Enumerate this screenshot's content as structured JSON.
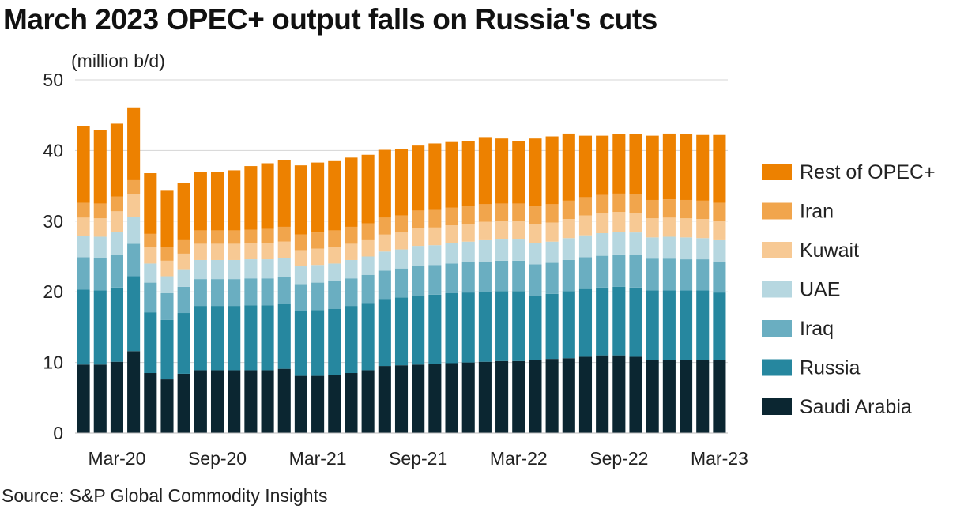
{
  "chart_data": {
    "type": "bar",
    "stacked": true,
    "title": "March 2023 OPEC+ output falls on Russia's cuts",
    "ylabel": "(million b/d)",
    "xlabel": "",
    "source": "Source: S&P Global Commodity Insights",
    "ylim": [
      0,
      50
    ],
    "yticks": [
      0,
      10,
      20,
      30,
      40,
      50
    ],
    "grid": true,
    "legend_position": "right",
    "categories": [
      "Jan-20",
      "Feb-20",
      "Mar-20",
      "Apr-20",
      "May-20",
      "Jun-20",
      "Jul-20",
      "Aug-20",
      "Sep-20",
      "Oct-20",
      "Nov-20",
      "Dec-20",
      "Jan-21",
      "Feb-21",
      "Mar-21",
      "Apr-21",
      "May-21",
      "Jun-21",
      "Jul-21",
      "Aug-21",
      "Sep-21",
      "Oct-21",
      "Nov-21",
      "Dec-21",
      "Jan-22",
      "Feb-22",
      "Mar-22",
      "Apr-22",
      "May-22",
      "Jun-22",
      "Jul-22",
      "Aug-22",
      "Sep-22",
      "Oct-22",
      "Nov-22",
      "Dec-22",
      "Jan-23",
      "Feb-23",
      "Mar-23"
    ],
    "x_tick_labels": [
      {
        "index": 2,
        "label": "Mar-20"
      },
      {
        "index": 8,
        "label": "Sep-20"
      },
      {
        "index": 14,
        "label": "Mar-21"
      },
      {
        "index": 20,
        "label": "Sep-21"
      },
      {
        "index": 26,
        "label": "Mar-22"
      },
      {
        "index": 32,
        "label": "Sep-22"
      },
      {
        "index": 38,
        "label": "Mar-23"
      }
    ],
    "series": [
      {
        "name": "Saudi Arabia",
        "color": "#0b2631",
        "values": [
          9.7,
          9.7,
          10.1,
          11.6,
          8.5,
          7.6,
          8.4,
          8.9,
          8.9,
          8.9,
          8.9,
          8.9,
          9.1,
          8.1,
          8.1,
          8.2,
          8.5,
          8.9,
          9.5,
          9.6,
          9.7,
          9.8,
          9.9,
          10.0,
          10.1,
          10.2,
          10.2,
          10.4,
          10.5,
          10.6,
          10.8,
          11.0,
          11.0,
          10.8,
          10.4,
          10.4,
          10.4,
          10.4,
          10.4
        ]
      },
      {
        "name": "Russia",
        "color": "#26879f",
        "values": [
          10.6,
          10.5,
          10.5,
          10.6,
          8.6,
          8.4,
          8.6,
          9.1,
          9.1,
          9.1,
          9.2,
          9.2,
          9.2,
          9.2,
          9.3,
          9.4,
          9.5,
          9.5,
          9.5,
          9.6,
          9.8,
          9.8,
          9.9,
          9.9,
          9.9,
          9.9,
          9.9,
          9.1,
          9.2,
          9.5,
          9.6,
          9.6,
          9.7,
          9.8,
          9.8,
          9.8,
          9.8,
          9.8,
          9.5
        ]
      },
      {
        "name": "Iraq",
        "color": "#6aaec1",
        "values": [
          4.6,
          4.6,
          4.6,
          4.6,
          4.2,
          3.8,
          3.7,
          3.8,
          3.8,
          3.8,
          3.8,
          3.8,
          3.8,
          3.8,
          3.9,
          3.9,
          3.9,
          4.0,
          4.0,
          4.1,
          4.2,
          4.2,
          4.2,
          4.3,
          4.3,
          4.3,
          4.3,
          4.4,
          4.4,
          4.4,
          4.5,
          4.5,
          4.6,
          4.6,
          4.5,
          4.5,
          4.4,
          4.4,
          4.4
        ]
      },
      {
        "name": "UAE",
        "color": "#b6d7e0",
        "values": [
          3.0,
          3.0,
          3.3,
          3.8,
          2.7,
          2.4,
          2.5,
          2.7,
          2.7,
          2.7,
          2.7,
          2.7,
          2.7,
          2.5,
          2.5,
          2.5,
          2.6,
          2.6,
          2.7,
          2.7,
          2.8,
          2.8,
          2.9,
          2.9,
          3.0,
          3.0,
          3.0,
          3.0,
          3.0,
          3.1,
          3.1,
          3.2,
          3.2,
          3.2,
          3.0,
          3.1,
          3.1,
          3.0,
          3.0
        ]
      },
      {
        "name": "Kuwait",
        "color": "#f7c994",
        "values": [
          2.6,
          2.6,
          2.9,
          3.2,
          2.3,
          2.2,
          2.2,
          2.3,
          2.3,
          2.3,
          2.3,
          2.3,
          2.3,
          2.3,
          2.3,
          2.3,
          2.3,
          2.3,
          2.4,
          2.4,
          2.5,
          2.5,
          2.5,
          2.5,
          2.6,
          2.6,
          2.6,
          2.7,
          2.7,
          2.7,
          2.8,
          2.8,
          2.8,
          2.8,
          2.7,
          2.7,
          2.7,
          2.7,
          2.7
        ]
      },
      {
        "name": "Iran",
        "color": "#f1a54c",
        "values": [
          2.1,
          2.1,
          2.1,
          2.0,
          1.9,
          1.9,
          1.9,
          1.9,
          1.9,
          1.9,
          1.9,
          2.0,
          2.1,
          2.2,
          2.3,
          2.4,
          2.4,
          2.4,
          2.4,
          2.4,
          2.5,
          2.5,
          2.5,
          2.5,
          2.5,
          2.5,
          2.5,
          2.5,
          2.6,
          2.6,
          2.6,
          2.6,
          2.6,
          2.6,
          2.6,
          2.6,
          2.6,
          2.6,
          2.6
        ]
      },
      {
        "name": "Rest of OPEC+",
        "color": "#ed8100",
        "values": [
          10.9,
          10.4,
          10.3,
          10.2,
          8.6,
          8.0,
          8.1,
          8.3,
          8.3,
          8.5,
          9.0,
          9.3,
          9.5,
          9.8,
          9.9,
          9.8,
          9.8,
          9.7,
          9.6,
          9.4,
          9.2,
          9.4,
          9.3,
          9.2,
          9.5,
          9.2,
          8.8,
          9.6,
          9.6,
          9.5,
          8.7,
          8.4,
          8.4,
          8.5,
          9.1,
          9.3,
          9.3,
          9.3,
          9.6
        ]
      }
    ]
  }
}
